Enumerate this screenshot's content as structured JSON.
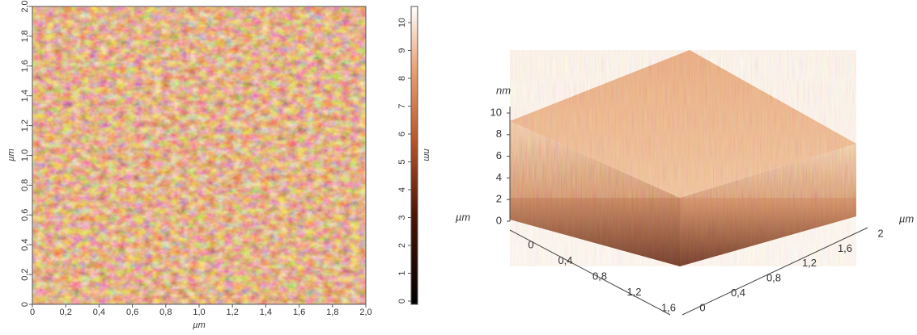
{
  "map2d": {
    "x_axis_label": "µm",
    "y_axis_label": "µm",
    "x_ticks": [
      "0",
      "0,2",
      "0,4",
      "0,6",
      "0,8",
      "1,0",
      "1,2",
      "1,4",
      "1,6",
      "1,8",
      "2,0"
    ],
    "y_ticks": [
      "0",
      "0,2",
      "0,4",
      "0,6",
      "0,8",
      "1,0",
      "1,2",
      "1,4",
      "1,6",
      "1,8",
      "2,0"
    ]
  },
  "colorbar": {
    "label": "nm",
    "ticks": [
      "0",
      "1",
      "2",
      "3",
      "4",
      "5",
      "6",
      "7",
      "8",
      "9",
      "10"
    ]
  },
  "surface3d": {
    "z_label": "nm",
    "z_ticks": [
      "0",
      "2",
      "4",
      "6",
      "8",
      "10"
    ],
    "left_axis_label": "µm",
    "left_ticks": [
      "0",
      "0,4",
      "0,8",
      "1,2",
      "1,6"
    ],
    "right_axis_label": "µm",
    "right_ticks": [
      "0",
      "0,4",
      "0,8",
      "1,2",
      "1,6",
      "2"
    ]
  }
}
